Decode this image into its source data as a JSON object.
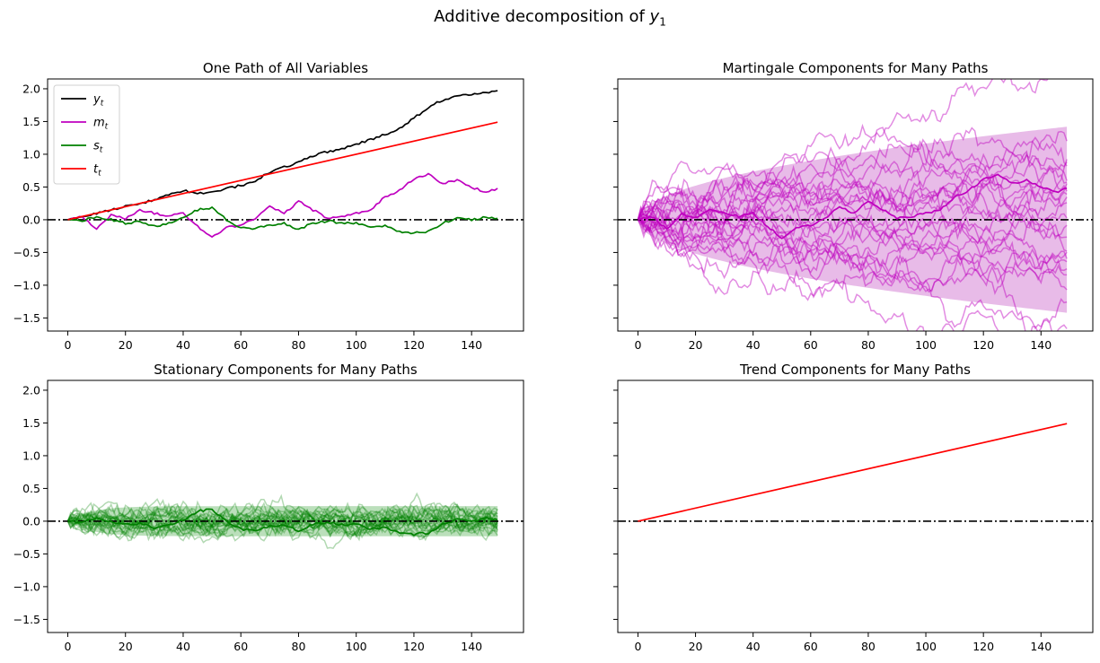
{
  "figure": {
    "title_prefix": "Additive decomposition of ",
    "title_var": "y",
    "title_sub": "1"
  },
  "colors": {
    "y": "#000000",
    "m": "#bf00bf",
    "s": "#008000",
    "t": "#ff0000",
    "m_band": "#e6b4e6",
    "s_band": "#b4dcb4",
    "zero_line": "#000000"
  },
  "chart_data": [
    {
      "type": "line",
      "title": "One Path of All Variables",
      "xlim": [
        -7,
        158
      ],
      "ylim": [
        -1.7,
        2.15
      ],
      "xticks": [
        0,
        20,
        40,
        60,
        80,
        100,
        120,
        140
      ],
      "yticks": [
        -1.5,
        -1.0,
        -0.5,
        0.0,
        0.5,
        1.0,
        1.5,
        2.0
      ],
      "ytick_labels": [
        "−1.5",
        "−1.0",
        "−0.5",
        "0.0",
        "0.5",
        "1.0",
        "1.5",
        "2.0"
      ],
      "show_yticklabels": true,
      "legend": {
        "placement": "upper-left",
        "entries": [
          {
            "var": "y",
            "sub": "t",
            "color_key": "y"
          },
          {
            "var": "m",
            "sub": "t",
            "color_key": "m"
          },
          {
            "var": "s",
            "sub": "t",
            "color_key": "s"
          },
          {
            "var": "t",
            "sub": "t",
            "color_key": "t"
          }
        ]
      },
      "zero_line": true,
      "series": [
        {
          "key": "y",
          "x": [
            0,
            10,
            20,
            30,
            40,
            45,
            50,
            55,
            60,
            65,
            70,
            75,
            80,
            85,
            90,
            95,
            100,
            105,
            110,
            115,
            120,
            125,
            130,
            135,
            140,
            145,
            149
          ],
          "y": [
            0.0,
            0.1,
            0.2,
            0.3,
            0.45,
            0.4,
            0.42,
            0.48,
            0.52,
            0.6,
            0.72,
            0.8,
            0.88,
            0.98,
            1.04,
            1.08,
            1.15,
            1.22,
            1.3,
            1.4,
            1.55,
            1.72,
            1.83,
            1.88,
            1.92,
            1.95,
            1.97
          ]
        },
        {
          "key": "m",
          "x": [
            0,
            5,
            10,
            15,
            20,
            25,
            30,
            35,
            40,
            45,
            50,
            55,
            60,
            65,
            70,
            75,
            80,
            85,
            90,
            95,
            100,
            105,
            110,
            115,
            120,
            125,
            130,
            135,
            140,
            145,
            149
          ],
          "y": [
            0.0,
            0.05,
            -0.15,
            0.08,
            0.02,
            0.15,
            0.1,
            0.05,
            0.1,
            -0.1,
            -0.28,
            -0.12,
            -0.08,
            0.02,
            0.2,
            0.1,
            0.28,
            0.15,
            0.02,
            0.05,
            0.1,
            0.15,
            0.35,
            0.45,
            0.62,
            0.7,
            0.55,
            0.6,
            0.5,
            0.42,
            0.48
          ]
        },
        {
          "key": "s",
          "x": [
            0,
            5,
            10,
            15,
            20,
            25,
            30,
            35,
            40,
            45,
            50,
            55,
            60,
            65,
            70,
            75,
            80,
            85,
            90,
            95,
            100,
            105,
            110,
            115,
            120,
            125,
            130,
            135,
            140,
            145,
            149
          ],
          "y": [
            0.0,
            -0.02,
            0.05,
            0.0,
            -0.05,
            -0.03,
            -0.1,
            -0.05,
            0.02,
            0.15,
            0.18,
            0.0,
            -0.12,
            -0.14,
            -0.08,
            -0.05,
            -0.15,
            -0.05,
            -0.02,
            -0.05,
            -0.05,
            -0.12,
            -0.1,
            -0.18,
            -0.2,
            -0.18,
            -0.05,
            0.02,
            0.0,
            0.04,
            0.02
          ]
        },
        {
          "key": "t",
          "x": [
            0,
            149
          ],
          "y": [
            0.0,
            1.49
          ]
        }
      ]
    },
    {
      "type": "line",
      "title": "Martingale Components for Many Paths",
      "xlim": [
        -7,
        158
      ],
      "ylim": [
        -1.7,
        2.15
      ],
      "xticks": [
        0,
        20,
        40,
        60,
        80,
        100,
        120,
        140
      ],
      "yticks": [
        -1.5,
        -1.0,
        -0.5,
        0.0,
        0.5,
        1.0,
        1.5,
        2.0
      ],
      "show_yticklabels": false,
      "zero_line": true,
      "band": {
        "color_key": "m_band",
        "upper_at_end": 1.42,
        "lower_at_end": -1.42,
        "shape": "sqrt"
      },
      "many_paths": {
        "count": 25,
        "color_key": "m",
        "seed": 7,
        "step_sd": 0.08,
        "opacity": 0.45
      },
      "highlight": {
        "key": "m",
        "from_panel": 0
      }
    },
    {
      "type": "line",
      "title": "Stationary Components for Many Paths",
      "xlim": [
        -7,
        158
      ],
      "ylim": [
        -1.7,
        2.15
      ],
      "xticks": [
        0,
        20,
        40,
        60,
        80,
        100,
        120,
        140
      ],
      "yticks": [
        -1.5,
        -1.0,
        -0.5,
        0.0,
        0.5,
        1.0,
        1.5,
        2.0
      ],
      "ytick_labels": [
        "−1.5",
        "−1.0",
        "−0.5",
        "0.0",
        "0.5",
        "1.0",
        "1.5",
        "2.0"
      ],
      "show_yticklabels": true,
      "zero_line": true,
      "band": {
        "color_key": "s_band",
        "upper_at_end": 0.23,
        "lower_at_end": -0.23,
        "shape": "saturate"
      },
      "many_paths": {
        "count": 25,
        "color_key": "s",
        "seed": 13,
        "step_sd": 0.06,
        "mean_revert": 0.15,
        "opacity": 0.3
      },
      "highlight": {
        "key": "s",
        "from_panel": 0
      }
    },
    {
      "type": "line",
      "title": "Trend Components for Many Paths",
      "xlim": [
        -7,
        158
      ],
      "ylim": [
        -1.7,
        2.15
      ],
      "xticks": [
        0,
        20,
        40,
        60,
        80,
        100,
        120,
        140
      ],
      "yticks": [
        -1.5,
        -1.0,
        -0.5,
        0.0,
        0.5,
        1.0,
        1.5,
        2.0
      ],
      "show_yticklabels": false,
      "zero_line": true,
      "series": [
        {
          "key": "t",
          "x": [
            0,
            149
          ],
          "y": [
            0.0,
            1.49
          ]
        }
      ]
    }
  ]
}
